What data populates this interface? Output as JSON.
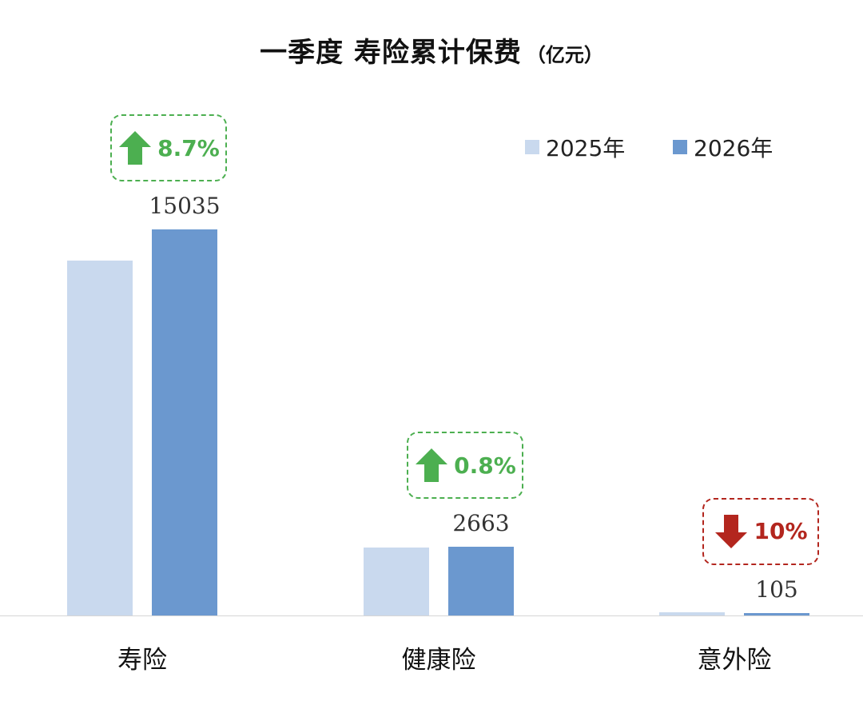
{
  "chart_data": {
    "type": "bar",
    "title": "一季度 寿险累计保费",
    "unit": "（亿元）",
    "categories": [
      "寿险",
      "健康险",
      "意外险"
    ],
    "series": [
      {
        "name": "2025年",
        "values": [
          13830,
          2642,
          117
        ],
        "color": "#c9d9ee"
      },
      {
        "name": "2026年",
        "values": [
          15035,
          2663,
          105
        ],
        "color": "#6b98cf"
      }
    ],
    "data_labels": [
      "15035",
      "2663",
      "105"
    ],
    "changes": [
      {
        "text": "8.7%",
        "direction": "up",
        "color": "#4caf50"
      },
      {
        "text": "0.8%",
        "direction": "up",
        "color": "#4caf50"
      },
      {
        "text": "10%",
        "direction": "down",
        "color": "#b3261e"
      }
    ],
    "ylim": [
      0,
      15035
    ],
    "legend_position": "top-right",
    "grid": false
  }
}
